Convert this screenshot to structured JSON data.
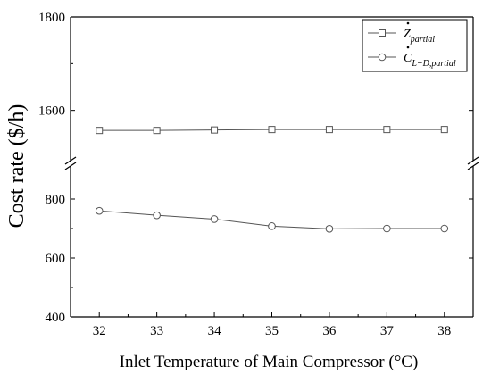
{
  "chart_data": {
    "type": "line",
    "xlabel": "Inlet Temperature of Main Compressor (°C)",
    "ylabel": "Cost rate ($/h)",
    "x": [
      32,
      33,
      34,
      35,
      36,
      37,
      38
    ],
    "x_ticks": [
      "32",
      "33",
      "34",
      "35",
      "36",
      "37",
      "38"
    ],
    "xlim": [
      31.5,
      38.5
    ],
    "y_axis_break": true,
    "y_segments": [
      {
        "range": [
          400,
          900
        ],
        "ticks": [
          "400",
          "600",
          "800"
        ]
      },
      {
        "range": [
          1500,
          1800
        ],
        "ticks": [
          "1600",
          "1800"
        ]
      }
    ],
    "series": [
      {
        "name_main": "Z",
        "name_sub": "partial",
        "marker": "square",
        "values": [
          1557,
          1557,
          1558,
          1559,
          1559,
          1559,
          1559
        ]
      },
      {
        "name_main": "C",
        "name_sub": "L+D,partial",
        "marker": "circle",
        "values": [
          760,
          745,
          732,
          708,
          699,
          700,
          700
        ]
      }
    ],
    "legend_position": "top-right",
    "grid": false
  }
}
